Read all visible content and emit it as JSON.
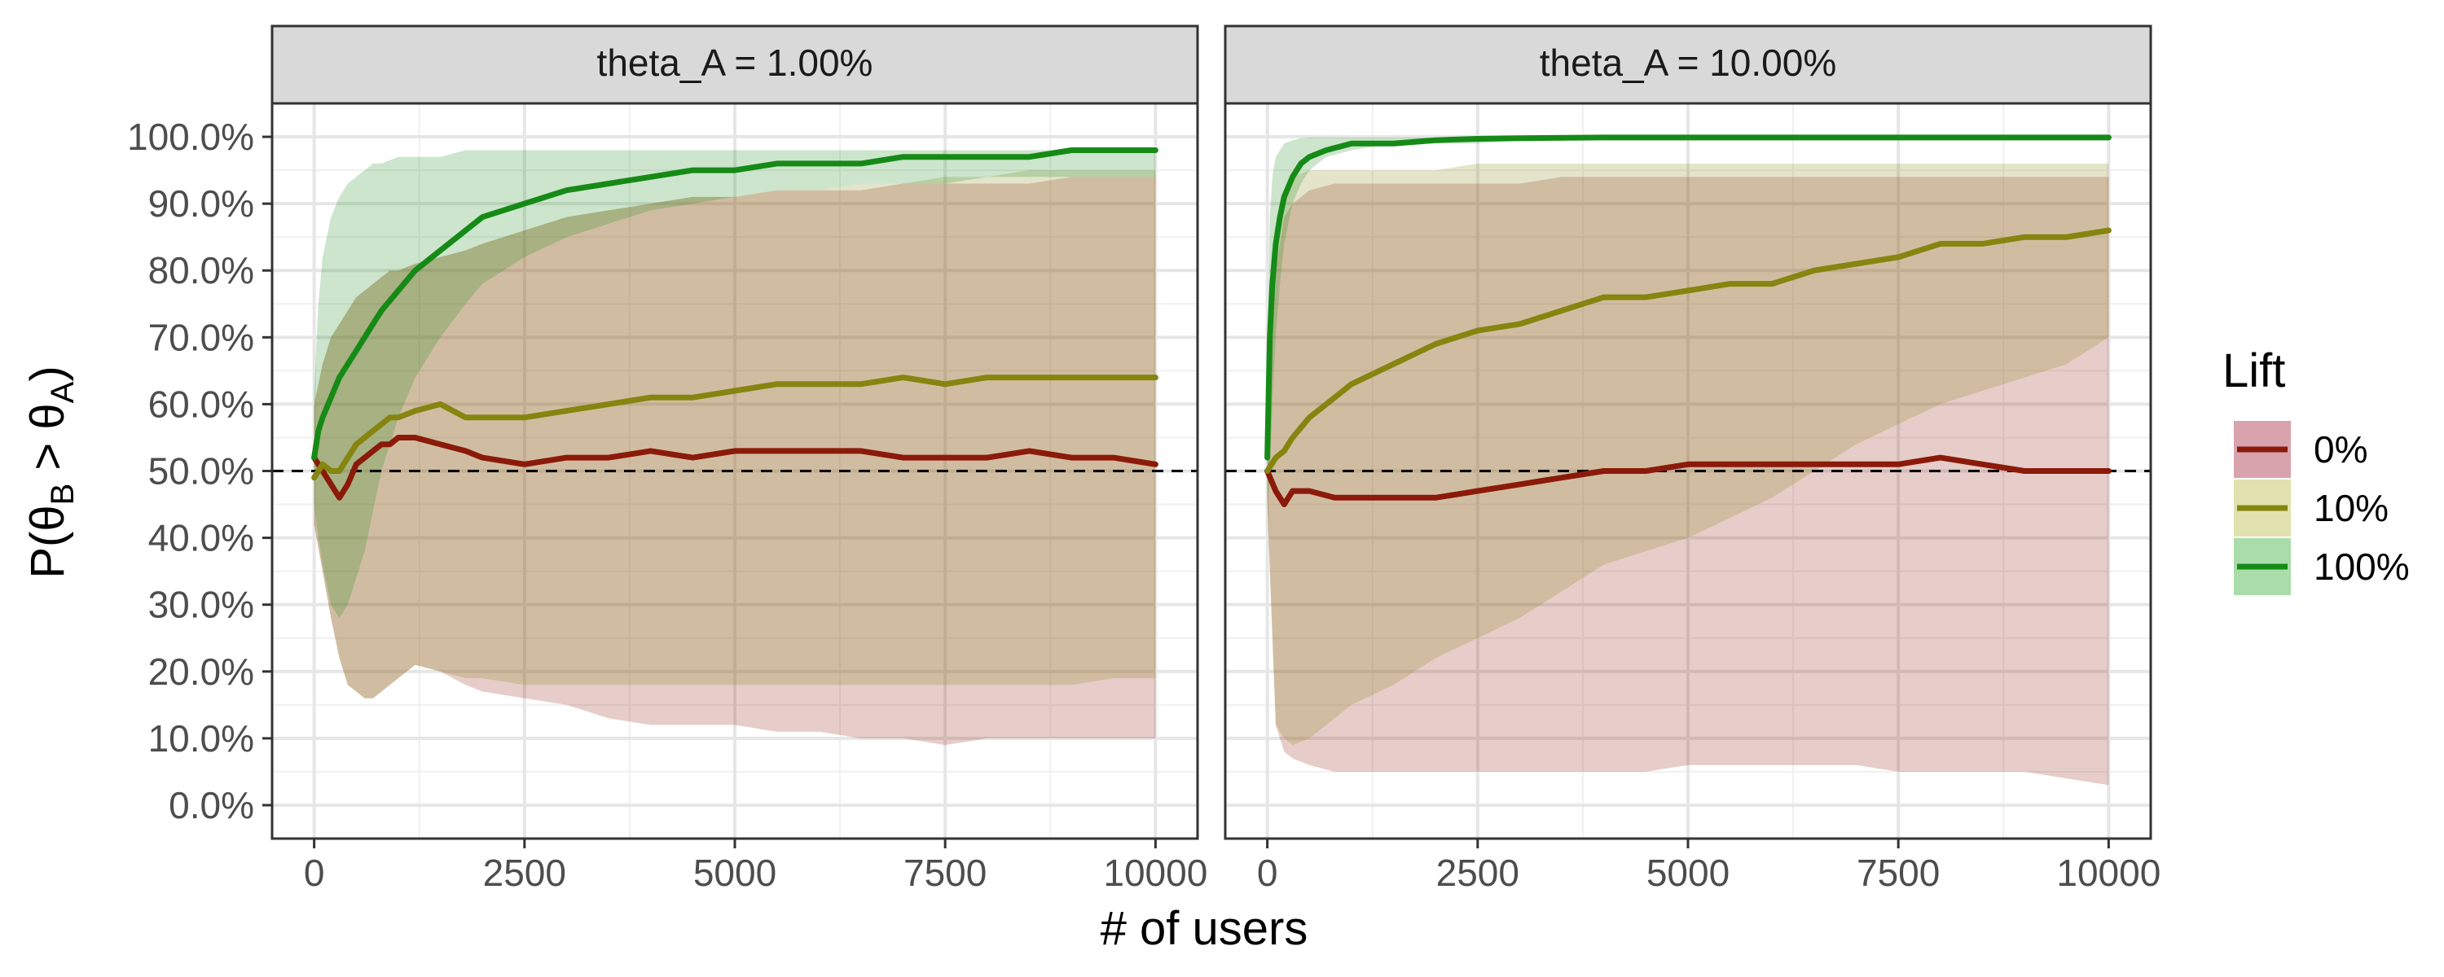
{
  "chart_data": {
    "type": "line",
    "xlabel": "# of users",
    "ylabel": "P(θB > θA)",
    "ylabel_parts": {
      "prefix": "P(",
      "theta1": "θ",
      "sub1": "B",
      "gt": " > ",
      "theta2": "θ",
      "sub2": "A",
      "suffix": ")"
    },
    "xlim": [
      -500,
      10500
    ],
    "ylim": [
      -0.05,
      1.05
    ],
    "x_ticks": [
      0,
      2500,
      5000,
      7500,
      10000
    ],
    "x_tick_labels": [
      "0",
      "2500",
      "5000",
      "7500",
      "10000"
    ],
    "y_ticks": [
      0,
      0.1,
      0.2,
      0.3,
      0.4,
      0.5,
      0.6,
      0.7,
      0.8,
      0.9,
      1.0
    ],
    "y_tick_labels": [
      "0.0%",
      "10.0%",
      "20.0%",
      "30.0%",
      "40.0%",
      "50.0%",
      "60.0%",
      "70.0%",
      "80.0%",
      "90.0%",
      "100.0%"
    ],
    "reference_line": 0.5,
    "grid": true,
    "legend": {
      "title": "Lift",
      "position": "right",
      "entries": [
        {
          "label": "0%",
          "color": "#8B1A0A",
          "fill": "#D8A3AC"
        },
        {
          "label": "10%",
          "color": "#858510",
          "fill": "#E2E2B0"
        },
        {
          "label": "100%",
          "color": "#168A16",
          "fill": "#A9DCA9"
        }
      ]
    },
    "panels": [
      {
        "title": "theta_A = 1.00%",
        "series": [
          {
            "name": "0%",
            "x": [
              0,
              100,
              200,
              300,
              400,
              500,
              600,
              700,
              800,
              900,
              1000,
              1200,
              1500,
              1800,
              2000,
              2500,
              3000,
              3500,
              4000,
              4500,
              5000,
              5500,
              6000,
              6500,
              7000,
              7500,
              8000,
              8500,
              9000,
              9500,
              10000
            ],
            "y": [
              0.52,
              0.5,
              0.48,
              0.46,
              0.48,
              0.51,
              0.52,
              0.53,
              0.54,
              0.54,
              0.55,
              0.55,
              0.54,
              0.53,
              0.52,
              0.51,
              0.52,
              0.52,
              0.53,
              0.52,
              0.53,
              0.53,
              0.53,
              0.53,
              0.52,
              0.52,
              0.52,
              0.53,
              0.52,
              0.52,
              0.51
            ],
            "lower": [
              0.42,
              0.35,
              0.28,
              0.22,
              0.18,
              0.17,
              0.16,
              0.16,
              0.17,
              0.18,
              0.19,
              0.21,
              0.2,
              0.18,
              0.17,
              0.16,
              0.15,
              0.13,
              0.12,
              0.12,
              0.12,
              0.11,
              0.11,
              0.1,
              0.1,
              0.09,
              0.1,
              0.1,
              0.1,
              0.1,
              0.1
            ],
            "upper": [
              0.6,
              0.66,
              0.7,
              0.72,
              0.74,
              0.76,
              0.77,
              0.78,
              0.79,
              0.8,
              0.8,
              0.81,
              0.82,
              0.83,
              0.84,
              0.86,
              0.88,
              0.89,
              0.9,
              0.91,
              0.91,
              0.92,
              0.92,
              0.92,
              0.93,
              0.93,
              0.93,
              0.93,
              0.94,
              0.94,
              0.94
            ]
          },
          {
            "name": "10%",
            "x": [
              0,
              100,
              200,
              300,
              400,
              500,
              600,
              700,
              800,
              900,
              1000,
              1200,
              1500,
              1800,
              2000,
              2500,
              3000,
              3500,
              4000,
              4500,
              5000,
              5500,
              6000,
              6500,
              7000,
              7500,
              8000,
              8500,
              9000,
              9500,
              10000
            ],
            "y": [
              0.49,
              0.51,
              0.5,
              0.5,
              0.52,
              0.54,
              0.55,
              0.56,
              0.57,
              0.58,
              0.58,
              0.59,
              0.6,
              0.58,
              0.58,
              0.58,
              0.59,
              0.6,
              0.61,
              0.61,
              0.62,
              0.63,
              0.63,
              0.63,
              0.64,
              0.63,
              0.64,
              0.64,
              0.64,
              0.64,
              0.64
            ],
            "lower": [
              0.42,
              0.35,
              0.28,
              0.22,
              0.18,
              0.17,
              0.16,
              0.16,
              0.17,
              0.18,
              0.19,
              0.21,
              0.2,
              0.19,
              0.19,
              0.18,
              0.18,
              0.18,
              0.18,
              0.18,
              0.18,
              0.18,
              0.18,
              0.18,
              0.18,
              0.18,
              0.18,
              0.18,
              0.18,
              0.19,
              0.19
            ],
            "upper": [
              0.6,
              0.66,
              0.7,
              0.72,
              0.74,
              0.76,
              0.77,
              0.78,
              0.79,
              0.8,
              0.8,
              0.81,
              0.82,
              0.83,
              0.84,
              0.86,
              0.88,
              0.89,
              0.9,
              0.91,
              0.91,
              0.92,
              0.92,
              0.93,
              0.93,
              0.94,
              0.94,
              0.95,
              0.95,
              0.95,
              0.95
            ]
          },
          {
            "name": "100%",
            "x": [
              0,
              50,
              100,
              200,
              300,
              400,
              500,
              600,
              700,
              800,
              1000,
              1200,
              1500,
              1800,
              2000,
              2500,
              3000,
              3500,
              4000,
              4500,
              5000,
              5500,
              6000,
              6500,
              7000,
              7500,
              8000,
              8500,
              9000,
              9500,
              10000
            ],
            "y": [
              0.52,
              0.56,
              0.58,
              0.61,
              0.64,
              0.66,
              0.68,
              0.7,
              0.72,
              0.74,
              0.77,
              0.8,
              0.83,
              0.86,
              0.88,
              0.9,
              0.92,
              0.93,
              0.94,
              0.95,
              0.95,
              0.96,
              0.96,
              0.96,
              0.97,
              0.97,
              0.97,
              0.97,
              0.98,
              0.98,
              0.98
            ],
            "lower": [
              0.45,
              0.4,
              0.36,
              0.3,
              0.28,
              0.3,
              0.34,
              0.38,
              0.44,
              0.5,
              0.58,
              0.64,
              0.7,
              0.75,
              0.78,
              0.82,
              0.85,
              0.87,
              0.89,
              0.9,
              0.91,
              0.92,
              0.92,
              0.93,
              0.93,
              0.93,
              0.94,
              0.94,
              0.94,
              0.94,
              0.94
            ],
            "upper": [
              0.62,
              0.75,
              0.82,
              0.88,
              0.91,
              0.93,
              0.94,
              0.95,
              0.96,
              0.96,
              0.97,
              0.97,
              0.97,
              0.98,
              0.98,
              0.98,
              0.98,
              0.98,
              0.98,
              0.98,
              0.98,
              0.98,
              0.98,
              0.98,
              0.98,
              0.98,
              0.98,
              0.98,
              0.98,
              0.98,
              0.98
            ]
          }
        ]
      },
      {
        "title": "theta_A = 10.00%",
        "series": [
          {
            "name": "0%",
            "x": [
              0,
              100,
              200,
              300,
              500,
              800,
              1000,
              1500,
              2000,
              2500,
              3000,
              3500,
              4000,
              4500,
              5000,
              5500,
              6000,
              6500,
              7000,
              7500,
              8000,
              8500,
              9000,
              9500,
              10000
            ],
            "y": [
              0.5,
              0.47,
              0.45,
              0.47,
              0.47,
              0.46,
              0.46,
              0.46,
              0.46,
              0.47,
              0.48,
              0.49,
              0.5,
              0.5,
              0.51,
              0.51,
              0.51,
              0.51,
              0.51,
              0.51,
              0.52,
              0.51,
              0.5,
              0.5,
              0.5
            ],
            "lower": [
              0.45,
              0.12,
              0.08,
              0.07,
              0.06,
              0.05,
              0.05,
              0.05,
              0.05,
              0.05,
              0.05,
              0.05,
              0.05,
              0.05,
              0.06,
              0.06,
              0.06,
              0.06,
              0.06,
              0.05,
              0.05,
              0.05,
              0.05,
              0.04,
              0.03
            ],
            "upper": [
              0.55,
              0.8,
              0.88,
              0.9,
              0.92,
              0.93,
              0.93,
              0.93,
              0.93,
              0.93,
              0.93,
              0.94,
              0.94,
              0.94,
              0.94,
              0.94,
              0.94,
              0.94,
              0.94,
              0.94,
              0.94,
              0.94,
              0.94,
              0.94,
              0.94
            ]
          },
          {
            "name": "10%",
            "x": [
              0,
              100,
              200,
              300,
              500,
              800,
              1000,
              1500,
              2000,
              2500,
              3000,
              3500,
              4000,
              4500,
              5000,
              5500,
              6000,
              6500,
              7000,
              7500,
              8000,
              8500,
              9000,
              9500,
              10000
            ],
            "y": [
              0.5,
              0.52,
              0.53,
              0.55,
              0.58,
              0.61,
              0.63,
              0.66,
              0.69,
              0.71,
              0.72,
              0.74,
              0.76,
              0.76,
              0.77,
              0.78,
              0.78,
              0.8,
              0.81,
              0.82,
              0.84,
              0.84,
              0.85,
              0.85,
              0.86
            ],
            "lower": [
              0.45,
              0.12,
              0.1,
              0.09,
              0.1,
              0.13,
              0.15,
              0.18,
              0.22,
              0.25,
              0.28,
              0.32,
              0.36,
              0.38,
              0.4,
              0.43,
              0.46,
              0.5,
              0.54,
              0.57,
              0.6,
              0.62,
              0.64,
              0.66,
              0.7
            ],
            "upper": [
              0.55,
              0.85,
              0.92,
              0.94,
              0.95,
              0.95,
              0.95,
              0.95,
              0.95,
              0.96,
              0.96,
              0.96,
              0.96,
              0.96,
              0.96,
              0.96,
              0.96,
              0.96,
              0.96,
              0.96,
              0.96,
              0.96,
              0.96,
              0.96,
              0.96
            ]
          },
          {
            "name": "100%",
            "x": [
              0,
              30,
              60,
              100,
              150,
              200,
              300,
              400,
              500,
              700,
              1000,
              1500,
              2000,
              2500,
              3000,
              4000,
              5000,
              6000,
              7000,
              8000,
              9000,
              10000
            ],
            "y": [
              0.52,
              0.7,
              0.78,
              0.84,
              0.88,
              0.91,
              0.94,
              0.96,
              0.97,
              0.98,
              0.99,
              0.99,
              0.995,
              0.997,
              0.998,
              0.999,
              0.999,
              0.999,
              0.999,
              0.999,
              0.999,
              0.999
            ],
            "lower": [
              0.45,
              0.5,
              0.6,
              0.7,
              0.78,
              0.84,
              0.9,
              0.93,
              0.95,
              0.97,
              0.98,
              0.99,
              0.99,
              0.99,
              0.995,
              0.995,
              0.995,
              0.995,
              0.995,
              0.995,
              0.995,
              0.995
            ],
            "upper": [
              0.65,
              0.88,
              0.94,
              0.97,
              0.98,
              0.99,
              0.995,
              0.998,
              0.999,
              0.999,
              0.999,
              0.999,
              0.999,
              0.999,
              0.999,
              0.999,
              0.999,
              0.999,
              0.999,
              0.999,
              0.999,
              0.999
            ]
          }
        ]
      }
    ]
  }
}
